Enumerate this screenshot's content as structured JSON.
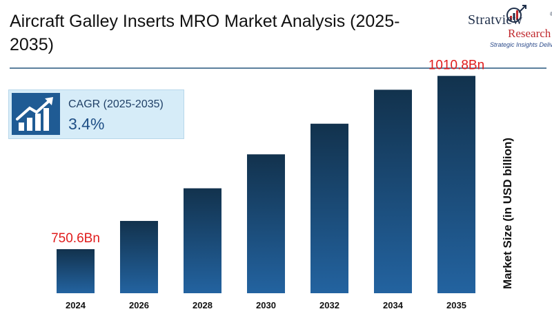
{
  "header": {
    "title": "Aircraft Galley Inserts MRO Market Analysis (2025-2035)"
  },
  "logo": {
    "brand_top": "Stratview",
    "brand_bottom": "Research",
    "tagline": "Strategic Insights Delivered",
    "registered": "®"
  },
  "cagr": {
    "label": "CAGR (2025-2035)",
    "value": "3.4%",
    "icon": "growth-chart-icon"
  },
  "colors": {
    "bar_top": "#12324d",
    "bar_bottom": "#2363a0",
    "label_red": "#e01b1b",
    "divider": "#5a7f9c"
  },
  "chart_data": {
    "type": "bar",
    "categories": [
      "2024",
      "2026",
      "2028",
      "2030",
      "2032",
      "2034",
      "2035"
    ],
    "values": [
      750.6,
      793,
      842,
      893,
      939,
      990,
      1010.8
    ],
    "data_labels": [
      "750.6Bn",
      "",
      "",
      "",
      "",
      "",
      "1010.8Bn"
    ],
    "ylabel": "Market Size (in USD billion)",
    "xlabel": "",
    "grid": false,
    "axis_visible": false
  }
}
